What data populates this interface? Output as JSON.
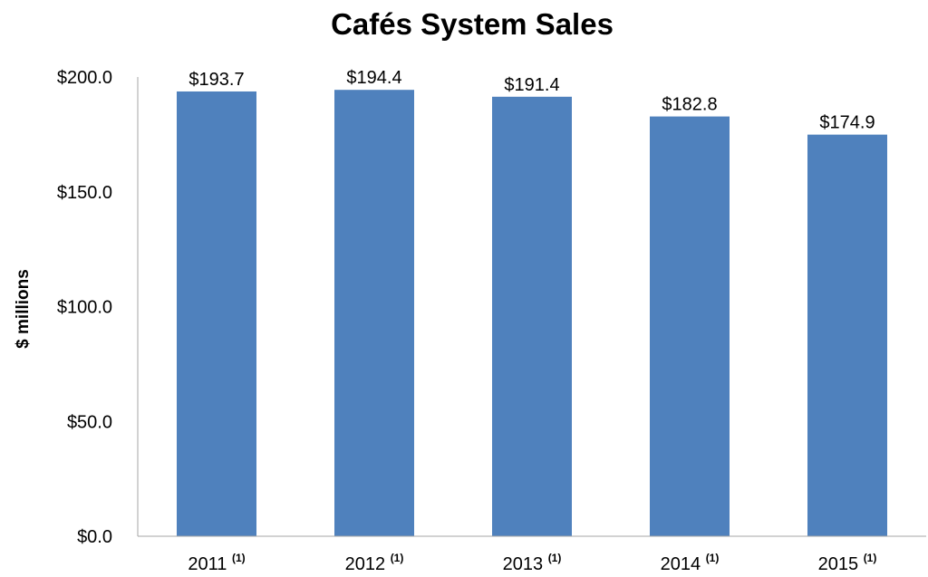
{
  "chart_data": {
    "type": "bar",
    "title": "Cafés System Sales",
    "ylabel": "$ millions",
    "xlabel": "",
    "categories": [
      "2011",
      "2012",
      "2013",
      "2014",
      "2015"
    ],
    "category_note": "(1)",
    "values": [
      193.7,
      194.4,
      191.4,
      182.8,
      174.9
    ],
    "data_labels": [
      "$193.7",
      "$194.4",
      "$191.4",
      "$182.8",
      "$174.9"
    ],
    "ylim": [
      0,
      200
    ],
    "yticks": [
      0,
      50,
      100,
      150,
      200
    ],
    "ytick_labels": [
      "$0.0",
      "$50.0",
      "$100.0",
      "$150.0",
      "$200.0"
    ],
    "grid": false,
    "legend": "none",
    "bar_color": "#4F81BD",
    "axis_color": "#A6A6A6"
  }
}
